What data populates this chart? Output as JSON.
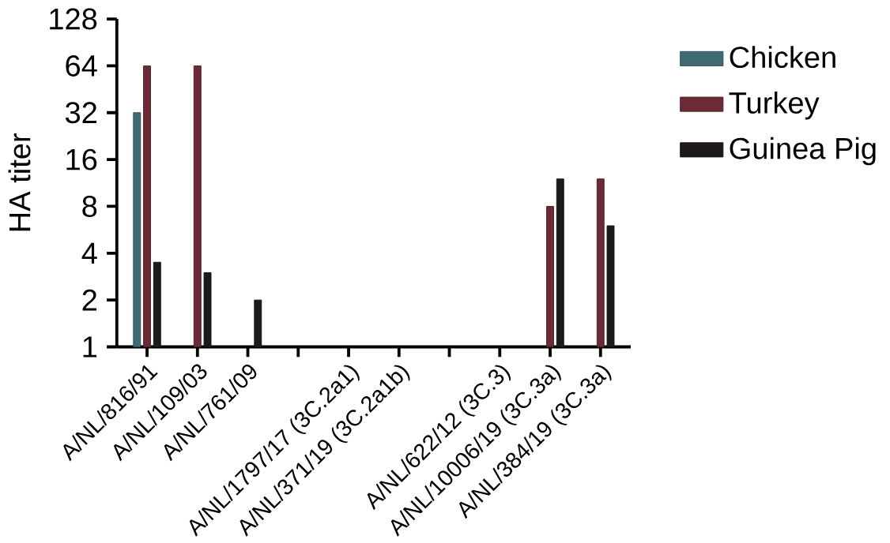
{
  "chart_data": {
    "type": "bar",
    "ylabel": "HA titer",
    "log": "y",
    "categories": [
      "A/NL/816/91",
      "A/NL/109/03",
      "A/NL/761/09",
      null,
      "A/NL/1797/17 (3C.2a1)",
      "A/NL/371/19 (3C.2a1b)",
      null,
      "A/NL/622/12 (3C.3)",
      "A/NL/10006/19 (3C.3a)",
      "A/NL/384/19 (3C.3a)"
    ],
    "series": [
      {
        "name": "Chicken",
        "color": "#3f6b73",
        "values": [
          32,
          null,
          null,
          null,
          null,
          null,
          null,
          null,
          null,
          null
        ]
      },
      {
        "name": "Turkey",
        "color": "#6b2a35",
        "values": [
          64,
          64,
          null,
          null,
          null,
          null,
          null,
          null,
          8,
          12
        ]
      },
      {
        "name": "Guinea Pig",
        "color": "#1e1a1b",
        "values": [
          3.5,
          3,
          2,
          null,
          null,
          null,
          null,
          null,
          12,
          6
        ]
      }
    ],
    "ylim": [
      1,
      128
    ],
    "yticks": [
      1,
      2,
      4,
      8,
      16,
      32,
      64,
      128
    ],
    "grid": false,
    "legend": "right"
  }
}
